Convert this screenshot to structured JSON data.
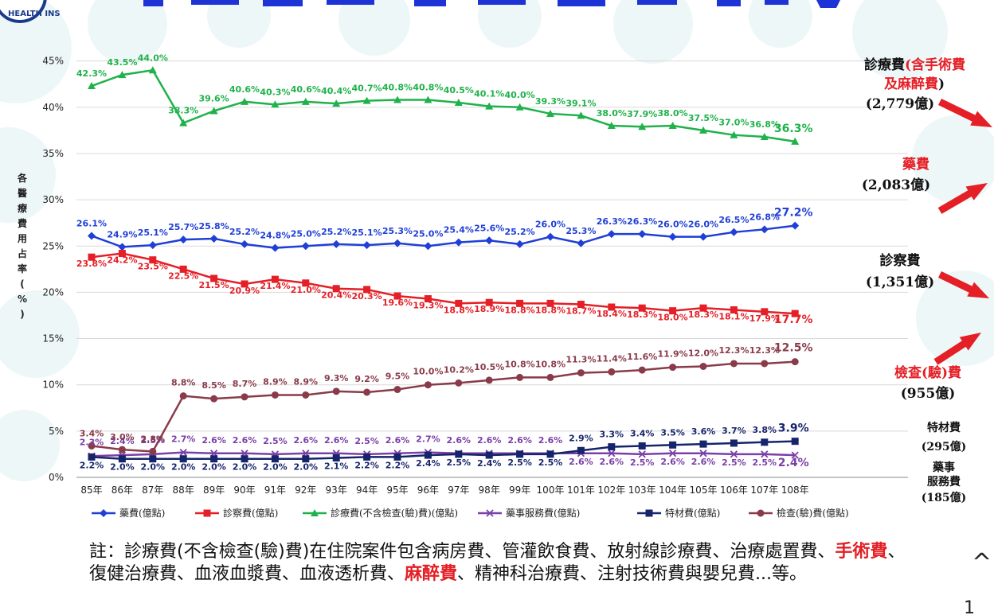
{
  "chart_data": {
    "type": "line",
    "ylabel": "各醫療費用占率(%)",
    "ylim": [
      0,
      47
    ],
    "yticks": [
      "0%",
      "5%",
      "10%",
      "15%",
      "20%",
      "25%",
      "30%",
      "35%",
      "40%",
      "45%"
    ],
    "categories": [
      "85年",
      "86年",
      "87年",
      "88年",
      "89年",
      "90年",
      "91年",
      "92年",
      "93年",
      "94年",
      "95年",
      "96年",
      "97年",
      "98年",
      "99年",
      "100年",
      "101年",
      "102年",
      "103年",
      "104年",
      "105年",
      "106年",
      "107年",
      "108年"
    ],
    "series": [
      {
        "name": "藥費(億點)",
        "color": "#1f3fd6",
        "marker": "diamond",
        "values": [
          26.1,
          24.9,
          25.1,
          25.7,
          25.8,
          25.2,
          24.8,
          25.0,
          25.2,
          25.1,
          25.3,
          25.0,
          25.4,
          25.6,
          25.2,
          26.0,
          25.3,
          26.3,
          26.3,
          26.0,
          26.0,
          26.5,
          26.8,
          27.2
        ],
        "labels": [
          "26.1%",
          "24.9%",
          "25.1%",
          "25.7%",
          "25.8%",
          "25.2%",
          "24.8%",
          "25.0%",
          "25.2%",
          "25.1%",
          "25.3%",
          "25.0%",
          "25.4%",
          "25.6%",
          "25.2%",
          "26.0%",
          "25.3%",
          "26.3%",
          "26.3%",
          "26.0%",
          "26.0%",
          "26.5%",
          "26.8%",
          "27.2%"
        ]
      },
      {
        "name": "診察費(億點)",
        "color": "#e41f26",
        "marker": "square",
        "values": [
          23.8,
          24.2,
          23.5,
          22.5,
          21.5,
          20.9,
          21.4,
          21.0,
          20.4,
          20.3,
          19.6,
          19.3,
          18.8,
          18.9,
          18.8,
          18.8,
          18.7,
          18.4,
          18.3,
          18.0,
          18.3,
          18.1,
          17.9,
          17.7
        ],
        "labels": [
          "23.8%",
          "24.2%",
          "23.5%",
          "22.5%",
          "21.5%",
          "20.9%",
          "21.4%",
          "21.0%",
          "20.4%",
          "20.3%",
          "19.6%",
          "19.3%",
          "18.8%",
          "18.9%",
          "18.8%",
          "18.8%",
          "18.7%",
          "18.4%",
          "18.3%",
          "18.0%",
          "18.3%",
          "18.1%",
          "17.9%",
          "17.7%"
        ]
      },
      {
        "name": "診療費(不含檢查(驗)費)(億點)",
        "color": "#1fb24a",
        "marker": "triangle",
        "values": [
          42.3,
          43.5,
          44.0,
          38.3,
          39.6,
          40.6,
          40.3,
          40.6,
          40.4,
          40.7,
          40.8,
          40.8,
          40.5,
          40.1,
          40.0,
          39.3,
          39.1,
          38.0,
          37.9,
          38.0,
          37.5,
          37.0,
          36.8,
          36.3
        ],
        "labels": [
          "42.3%",
          "43.5%",
          "44.0%",
          "38.3%",
          "39.6%",
          "40.6%",
          "40.3%",
          "40.6%",
          "40.4%",
          "40.7%",
          "40.8%",
          "40.8%",
          "40.5%",
          "40.1%",
          "40.0%",
          "39.3%",
          "39.1%",
          "38.0%",
          "37.9%",
          "38.0%",
          "37.5%",
          "37.0%",
          "36.8%",
          "36.3%"
        ]
      },
      {
        "name": "藥事服務費(億點)",
        "color": "#7b3fa8",
        "marker": "x",
        "values": [
          2.3,
          2.4,
          2.5,
          2.7,
          2.6,
          2.6,
          2.5,
          2.6,
          2.6,
          2.5,
          2.6,
          2.7,
          2.6,
          2.6,
          2.6,
          2.6,
          2.6,
          2.6,
          2.5,
          2.6,
          2.6,
          2.5,
          2.5,
          2.4
        ],
        "labels": [
          "2.3%",
          "2.4%",
          "2.5%",
          "2.7%",
          "2.6%",
          "2.6%",
          "2.5%",
          "2.6%",
          "2.6%",
          "2.5%",
          "2.6%",
          "2.7%",
          "2.6%",
          "2.6%",
          "2.6%",
          "2.6%",
          "2.6%",
          "2.6%",
          "2.5%",
          "2.6%",
          "2.6%",
          "2.5%",
          "2.5%",
          "2.4%"
        ]
      },
      {
        "name": "特材費(億點)",
        "color": "#16256b",
        "marker": "square",
        "values": [
          2.2,
          2.0,
          2.0,
          2.0,
          2.0,
          2.0,
          2.0,
          2.0,
          2.1,
          2.2,
          2.2,
          2.4,
          2.5,
          2.4,
          2.5,
          2.5,
          2.9,
          3.3,
          3.4,
          3.5,
          3.6,
          3.7,
          3.8,
          3.9
        ],
        "labels": [
          "2.2%",
          "2.0%",
          "2.0%",
          "2.0%",
          "2.0%",
          "2.0%",
          "2.0%",
          "2.0%",
          "2.1%",
          "2.2%",
          "2.2%",
          "2.4%",
          "2.5%",
          "2.4%",
          "2.5%",
          "2.5%",
          "2.9%",
          "3.3%",
          "3.4%",
          "3.5%",
          "3.6%",
          "3.7%",
          "3.8%",
          "3.9%"
        ]
      },
      {
        "name": "檢查(驗)費(億點)",
        "color": "#8a3b4a",
        "marker": "circle",
        "values": [
          3.4,
          3.0,
          2.8,
          8.8,
          8.5,
          8.7,
          8.9,
          8.9,
          9.3,
          9.2,
          9.5,
          10.0,
          10.2,
          10.5,
          10.8,
          10.8,
          11.3,
          11.4,
          11.6,
          11.9,
          12.0,
          12.3,
          12.3,
          12.5
        ],
        "labels": [
          "3.4%",
          "3.0%",
          "2.8%",
          "8.8%",
          "8.5%",
          "8.7%",
          "8.9%",
          "8.9%",
          "9.3%",
          "9.2%",
          "9.5%",
          "10.0%",
          "10.2%",
          "10.5%",
          "10.8%",
          "10.8%",
          "11.3%",
          "11.4%",
          "11.6%",
          "11.9%",
          "12.0%",
          "12.3%",
          "12.3%",
          "12.5%"
        ]
      }
    ],
    "annotations": [
      {
        "id": "diag",
        "lines": [
          "診療費(含手術費",
          "及麻醉費)",
          "(2,779億)"
        ]
      },
      {
        "id": "drug",
        "lines": [
          "藥費",
          "(2,083億)"
        ]
      },
      {
        "id": "consult",
        "lines": [
          "診察費",
          "(1,351億)"
        ]
      },
      {
        "id": "exam",
        "lines": [
          "檢查(驗)費",
          "(955億)"
        ]
      },
      {
        "id": "material",
        "lines": [
          "特材費",
          "(295億)"
        ]
      },
      {
        "id": "pharm",
        "lines": [
          "藥事",
          "服務費",
          "(185億)"
        ]
      }
    ]
  },
  "note": {
    "prefix": "註：診療費(不含檢查(驗)費)在住院案件包含病房費、管灌飲食費、放射線診療費、治療處置費、",
    "red1": "手術費",
    "mid": "、復健治療費、血液血漿費、血液透析費、",
    "red2": "麻醉費",
    "suffix": "、精神科治療費、注射技術費與嬰兒費...等。"
  },
  "logo_text": "HEALTH INS",
  "page_number": "1",
  "colors": {
    "bg_circles": "#dff0f2",
    "arrow": "#e41f26",
    "title_blue": "#1d33d6"
  }
}
